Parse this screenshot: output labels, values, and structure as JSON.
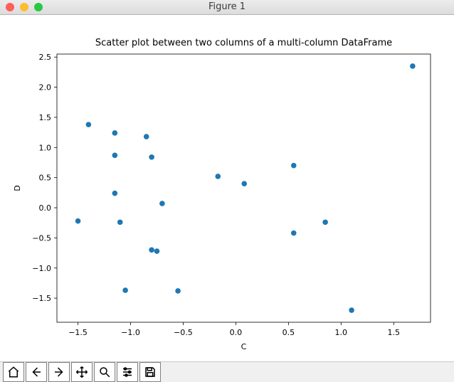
{
  "window": {
    "title": "Figure 1",
    "traffic_light_colors": {
      "close": "#ff5f57",
      "minimize": "#febc2e",
      "zoom": "#28c840"
    }
  },
  "chart": {
    "type": "scatter",
    "title": "Scatter plot between two columns of a multi-column DataFrame",
    "title_fontsize": 13,
    "xlabel": "C",
    "ylabel": "D",
    "label_fontsize": 11,
    "tick_fontsize": 11,
    "marker_color": "#1f77b4",
    "marker_radius": 3.8,
    "background_color": "#ffffff",
    "axis_color": "#000000",
    "xlim": [
      -1.7,
      1.85
    ],
    "ylim": [
      -1.9,
      2.55
    ],
    "xtick_start": -1.5,
    "xtick_step": 0.5,
    "xtick_end": 1.5,
    "ytick_start": -1.5,
    "ytick_step": 0.5,
    "ytick_end": 2.5,
    "points": [
      {
        "x": -1.5,
        "y": -0.22
      },
      {
        "x": -1.4,
        "y": 1.38
      },
      {
        "x": -1.15,
        "y": 1.24
      },
      {
        "x": -1.15,
        "y": 0.87
      },
      {
        "x": -1.15,
        "y": 0.24
      },
      {
        "x": -1.1,
        "y": -0.24
      },
      {
        "x": -1.05,
        "y": -1.37
      },
      {
        "x": -0.85,
        "y": 1.18
      },
      {
        "x": -0.8,
        "y": 0.84
      },
      {
        "x": -0.8,
        "y": -0.7
      },
      {
        "x": -0.75,
        "y": -0.72
      },
      {
        "x": -0.7,
        "y": 0.07
      },
      {
        "x": -0.55,
        "y": -1.38
      },
      {
        "x": -0.17,
        "y": 0.52
      },
      {
        "x": 0.08,
        "y": 0.4
      },
      {
        "x": 0.55,
        "y": 0.7
      },
      {
        "x": 0.55,
        "y": -0.42
      },
      {
        "x": 0.85,
        "y": -0.24
      },
      {
        "x": 1.1,
        "y": -1.7
      },
      {
        "x": 1.68,
        "y": 2.35
      }
    ]
  },
  "toolbar": {
    "buttons": [
      {
        "name": "home-button",
        "icon": "home-icon"
      },
      {
        "name": "back-button",
        "icon": "arrow-left-icon"
      },
      {
        "name": "forward-button",
        "icon": "arrow-right-icon"
      },
      {
        "name": "pan-button",
        "icon": "move-icon"
      },
      {
        "name": "zoom-button",
        "icon": "magnify-icon"
      },
      {
        "name": "subplots-button",
        "icon": "sliders-icon"
      },
      {
        "name": "save-button",
        "icon": "floppy-icon"
      }
    ]
  }
}
